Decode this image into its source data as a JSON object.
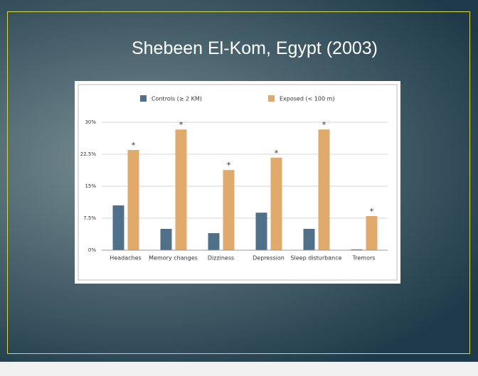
{
  "slide": {
    "title": "Shebeen El-Kom, Egypt (2003)"
  },
  "chart_data": {
    "type": "bar",
    "categories": [
      "Headaches",
      "Memory changes",
      "Dizziness",
      "Depression",
      "Sleep disturbance",
      "Tremors"
    ],
    "series": [
      {
        "name": "Controls (≥ 2 KM)",
        "color": "#50708a",
        "values": [
          10.5,
          5,
          4,
          8.8,
          5,
          0.2
        ]
      },
      {
        "name": "Exposed (< 100 m)",
        "color": "#e0aa6c",
        "values": [
          23.5,
          28.3,
          18.8,
          21.7,
          28.3,
          8
        ]
      }
    ],
    "annotations": [
      "*",
      "*",
      "*",
      "*",
      "*",
      "*"
    ],
    "ylim": [
      0,
      30
    ],
    "yticks": [
      {
        "value": 0,
        "label": "0%"
      },
      {
        "value": 7.5,
        "label": "7.5%"
      },
      {
        "value": 15,
        "label": "15%"
      },
      {
        "value": 22.5,
        "label": "22.5%"
      },
      {
        "value": 30,
        "label": "30%"
      }
    ],
    "grid": true
  }
}
